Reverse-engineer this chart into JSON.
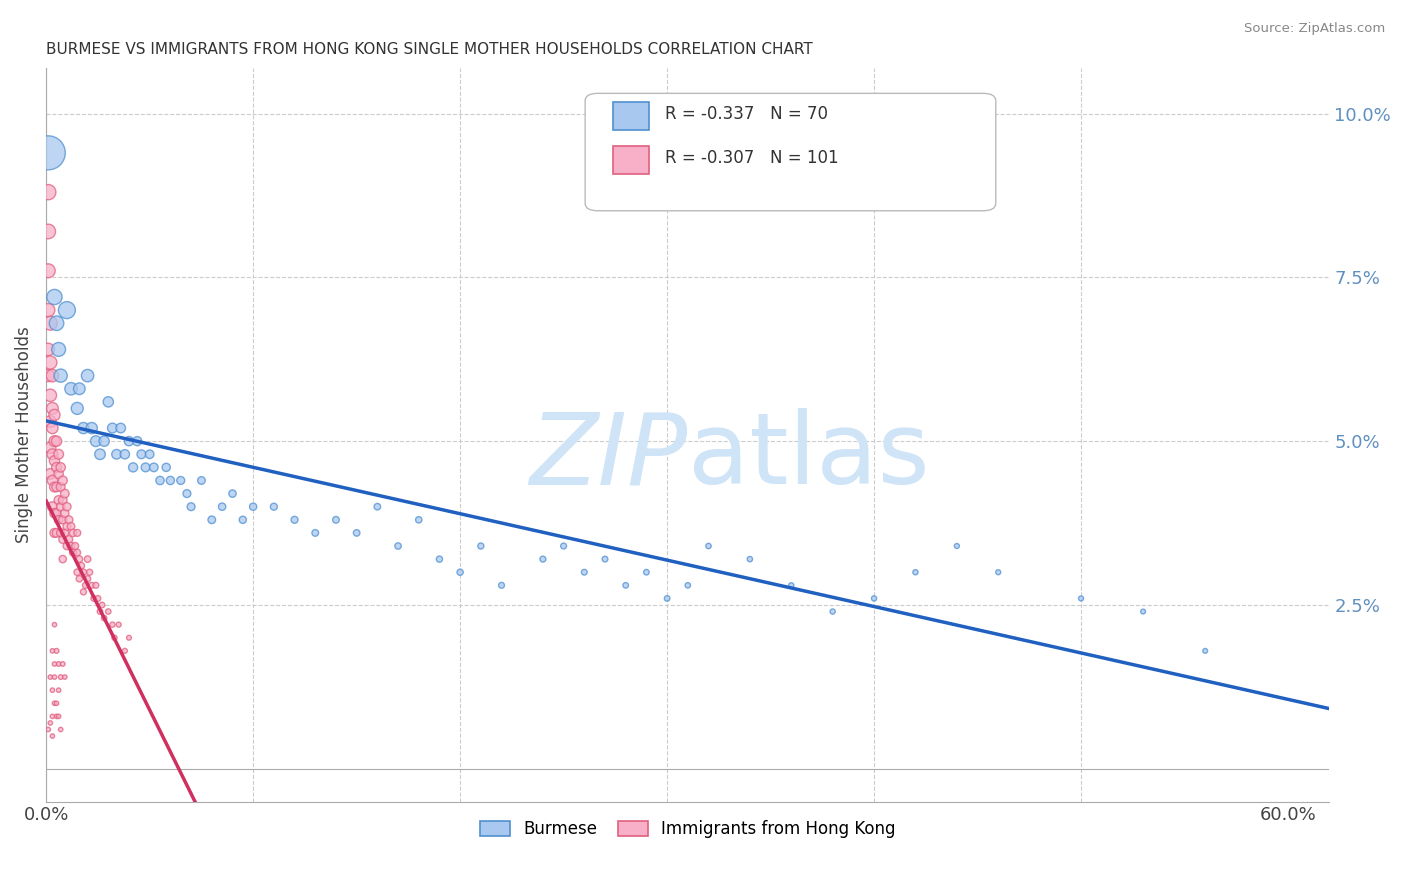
{
  "title": "BURMESE VS IMMIGRANTS FROM HONG KONG SINGLE MOTHER HOUSEHOLDS CORRELATION CHART",
  "source": "Source: ZipAtlas.com",
  "ylabel": "Single Mother Households",
  "xlim": [
    0.0,
    0.62
  ],
  "ylim": [
    -0.005,
    0.107
  ],
  "yticks": [
    0.0,
    0.025,
    0.05,
    0.075,
    0.1
  ],
  "ytick_labels": [
    "",
    "2.5%",
    "5.0%",
    "7.5%",
    "10.0%"
  ],
  "xtick_positions": [
    0.0,
    0.1,
    0.2,
    0.3,
    0.4,
    0.5,
    0.6
  ],
  "xtick_labels": [
    "0.0%",
    "",
    "",
    "",
    "",
    "",
    "60.0%"
  ],
  "legend": {
    "burmese_R": "-0.337",
    "burmese_N": "70",
    "hk_R": "-0.307",
    "hk_N": "101"
  },
  "burmese_fill_color": "#a8c8f0",
  "burmese_edge_color": "#5090d0",
  "hk_fill_color": "#f8b0c8",
  "hk_edge_color": "#e06080",
  "burmese_line_color": "#2060c0",
  "hk_line_color": "#d03060",
  "hk_dash_color": "#cccccc",
  "watermark_color": "#d0e4f7",
  "tick_color": "#6090c0",
  "grid_color": "#cccccc",
  "burmese_points": [
    [
      0.001,
      0.094
    ],
    [
      0.004,
      0.072
    ],
    [
      0.005,
      0.068
    ],
    [
      0.006,
      0.064
    ],
    [
      0.007,
      0.06
    ],
    [
      0.01,
      0.07
    ],
    [
      0.012,
      0.058
    ],
    [
      0.015,
      0.055
    ],
    [
      0.016,
      0.058
    ],
    [
      0.018,
      0.052
    ],
    [
      0.02,
      0.06
    ],
    [
      0.022,
      0.052
    ],
    [
      0.024,
      0.05
    ],
    [
      0.026,
      0.048
    ],
    [
      0.028,
      0.05
    ],
    [
      0.03,
      0.056
    ],
    [
      0.032,
      0.052
    ],
    [
      0.034,
      0.048
    ],
    [
      0.036,
      0.052
    ],
    [
      0.038,
      0.048
    ],
    [
      0.04,
      0.05
    ],
    [
      0.042,
      0.046
    ],
    [
      0.044,
      0.05
    ],
    [
      0.046,
      0.048
    ],
    [
      0.048,
      0.046
    ],
    [
      0.05,
      0.048
    ],
    [
      0.052,
      0.046
    ],
    [
      0.055,
      0.044
    ],
    [
      0.058,
      0.046
    ],
    [
      0.06,
      0.044
    ],
    [
      0.065,
      0.044
    ],
    [
      0.068,
      0.042
    ],
    [
      0.07,
      0.04
    ],
    [
      0.075,
      0.044
    ],
    [
      0.08,
      0.038
    ],
    [
      0.085,
      0.04
    ],
    [
      0.09,
      0.042
    ],
    [
      0.095,
      0.038
    ],
    [
      0.1,
      0.04
    ],
    [
      0.11,
      0.04
    ],
    [
      0.12,
      0.038
    ],
    [
      0.13,
      0.036
    ],
    [
      0.14,
      0.038
    ],
    [
      0.15,
      0.036
    ],
    [
      0.16,
      0.04
    ],
    [
      0.17,
      0.034
    ],
    [
      0.18,
      0.038
    ],
    [
      0.19,
      0.032
    ],
    [
      0.2,
      0.03
    ],
    [
      0.21,
      0.034
    ],
    [
      0.22,
      0.028
    ],
    [
      0.24,
      0.032
    ],
    [
      0.25,
      0.034
    ],
    [
      0.26,
      0.03
    ],
    [
      0.27,
      0.032
    ],
    [
      0.28,
      0.028
    ],
    [
      0.29,
      0.03
    ],
    [
      0.3,
      0.026
    ],
    [
      0.31,
      0.028
    ],
    [
      0.32,
      0.034
    ],
    [
      0.34,
      0.032
    ],
    [
      0.36,
      0.028
    ],
    [
      0.38,
      0.024
    ],
    [
      0.4,
      0.026
    ],
    [
      0.42,
      0.03
    ],
    [
      0.44,
      0.034
    ],
    [
      0.46,
      0.03
    ],
    [
      0.5,
      0.026
    ],
    [
      0.53,
      0.024
    ],
    [
      0.56,
      0.018
    ]
  ],
  "hk_points": [
    [
      0.001,
      0.088
    ],
    [
      0.001,
      0.082
    ],
    [
      0.001,
      0.076
    ],
    [
      0.001,
      0.07
    ],
    [
      0.001,
      0.064
    ],
    [
      0.001,
      0.06
    ],
    [
      0.002,
      0.068
    ],
    [
      0.002,
      0.062
    ],
    [
      0.002,
      0.057
    ],
    [
      0.002,
      0.053
    ],
    [
      0.002,
      0.049
    ],
    [
      0.002,
      0.045
    ],
    [
      0.003,
      0.06
    ],
    [
      0.003,
      0.055
    ],
    [
      0.003,
      0.052
    ],
    [
      0.003,
      0.048
    ],
    [
      0.003,
      0.044
    ],
    [
      0.003,
      0.04
    ],
    [
      0.004,
      0.054
    ],
    [
      0.004,
      0.05
    ],
    [
      0.004,
      0.047
    ],
    [
      0.004,
      0.043
    ],
    [
      0.004,
      0.039
    ],
    [
      0.004,
      0.036
    ],
    [
      0.005,
      0.05
    ],
    [
      0.005,
      0.046
    ],
    [
      0.005,
      0.043
    ],
    [
      0.005,
      0.039
    ],
    [
      0.005,
      0.036
    ],
    [
      0.006,
      0.048
    ],
    [
      0.006,
      0.045
    ],
    [
      0.006,
      0.041
    ],
    [
      0.006,
      0.038
    ],
    [
      0.007,
      0.046
    ],
    [
      0.007,
      0.043
    ],
    [
      0.007,
      0.04
    ],
    [
      0.007,
      0.036
    ],
    [
      0.008,
      0.044
    ],
    [
      0.008,
      0.041
    ],
    [
      0.008,
      0.038
    ],
    [
      0.008,
      0.035
    ],
    [
      0.008,
      0.032
    ],
    [
      0.009,
      0.042
    ],
    [
      0.009,
      0.039
    ],
    [
      0.009,
      0.036
    ],
    [
      0.01,
      0.04
    ],
    [
      0.01,
      0.037
    ],
    [
      0.01,
      0.034
    ],
    [
      0.011,
      0.038
    ],
    [
      0.011,
      0.035
    ],
    [
      0.012,
      0.037
    ],
    [
      0.012,
      0.034
    ],
    [
      0.013,
      0.036
    ],
    [
      0.013,
      0.033
    ],
    [
      0.014,
      0.034
    ],
    [
      0.015,
      0.036
    ],
    [
      0.015,
      0.033
    ],
    [
      0.015,
      0.03
    ],
    [
      0.016,
      0.032
    ],
    [
      0.016,
      0.029
    ],
    [
      0.017,
      0.031
    ],
    [
      0.018,
      0.03
    ],
    [
      0.018,
      0.027
    ],
    [
      0.019,
      0.028
    ],
    [
      0.02,
      0.032
    ],
    [
      0.02,
      0.029
    ],
    [
      0.021,
      0.03
    ],
    [
      0.022,
      0.028
    ],
    [
      0.023,
      0.026
    ],
    [
      0.024,
      0.028
    ],
    [
      0.025,
      0.026
    ],
    [
      0.026,
      0.024
    ],
    [
      0.027,
      0.025
    ],
    [
      0.028,
      0.023
    ],
    [
      0.03,
      0.024
    ],
    [
      0.032,
      0.022
    ],
    [
      0.033,
      0.02
    ],
    [
      0.035,
      0.022
    ],
    [
      0.038,
      0.018
    ],
    [
      0.04,
      0.02
    ],
    [
      0.005,
      0.018
    ],
    [
      0.006,
      0.016
    ],
    [
      0.007,
      0.014
    ],
    [
      0.008,
      0.016
    ],
    [
      0.009,
      0.014
    ],
    [
      0.003,
      0.012
    ],
    [
      0.004,
      0.01
    ],
    [
      0.005,
      0.008
    ],
    [
      0.002,
      0.007
    ],
    [
      0.003,
      0.005
    ],
    [
      0.001,
      0.006
    ],
    [
      0.002,
      0.014
    ],
    [
      0.003,
      0.018
    ],
    [
      0.004,
      0.022
    ],
    [
      0.006,
      0.008
    ],
    [
      0.007,
      0.006
    ],
    [
      0.004,
      0.014
    ],
    [
      0.005,
      0.01
    ],
    [
      0.006,
      0.012
    ],
    [
      0.003,
      0.008
    ],
    [
      0.004,
      0.016
    ]
  ],
  "burmese_pt_sizes": [
    600,
    120,
    110,
    100,
    90,
    150,
    80,
    75,
    70,
    65,
    80,
    65,
    60,
    58,
    55,
    55,
    50,
    48,
    48,
    45,
    45,
    43,
    43,
    40,
    40,
    38,
    38,
    36,
    35,
    35,
    33,
    32,
    32,
    30,
    30,
    28,
    28,
    27,
    27,
    25,
    25,
    23,
    23,
    22,
    22,
    21,
    21,
    20,
    20,
    19,
    18,
    18,
    18,
    17,
    17,
    16,
    16,
    16,
    15,
    15,
    15,
    14,
    14,
    14,
    14,
    13,
    13,
    13,
    12,
    12
  ],
  "hk_pt_sizes": [
    120,
    110,
    100,
    90,
    80,
    75,
    100,
    90,
    80,
    70,
    65,
    60,
    80,
    72,
    65,
    60,
    55,
    50,
    65,
    60,
    55,
    50,
    45,
    42,
    55,
    50,
    45,
    42,
    38,
    50,
    45,
    42,
    38,
    45,
    40,
    37,
    34,
    42,
    38,
    35,
    32,
    28,
    38,
    35,
    32,
    35,
    32,
    29,
    32,
    29,
    30,
    28,
    28,
    26,
    25,
    25,
    23,
    22,
    23,
    21,
    21,
    20,
    19,
    19,
    22,
    20,
    19,
    18,
    17,
    18,
    17,
    16,
    16,
    15,
    15,
    14,
    14,
    13,
    13,
    12,
    12,
    11,
    11,
    11,
    10,
    10,
    10,
    10,
    10,
    10,
    10,
    10,
    10,
    10,
    10,
    10,
    10,
    10,
    10,
    10,
    10
  ]
}
